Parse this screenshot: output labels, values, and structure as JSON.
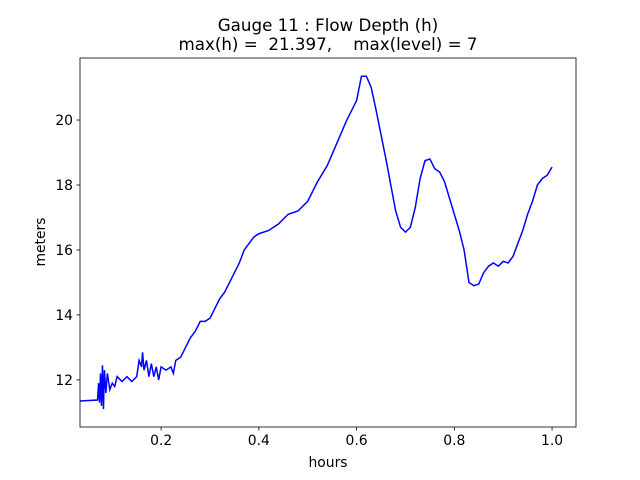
{
  "chart_data": {
    "type": "line",
    "title": [
      "Gauge 11 : Flow Depth (h)",
      "max(h) =  21.397,    max(level) = 7"
    ],
    "x_label": "hours",
    "y_label": "meters",
    "xlim": [
      0.034,
      1.049
    ],
    "ylim": [
      10.55,
      21.91
    ],
    "xticks": [
      0.2,
      0.4,
      0.6,
      0.8,
      {
        "value": 1,
        "label": "1.0"
      }
    ],
    "yticks": [
      12,
      14,
      16,
      18,
      20
    ],
    "series": [
      {
        "name": "h",
        "color": "#0000ff",
        "x": [
          0.034,
          0.07,
          0.072,
          0.074,
          0.076,
          0.078,
          0.08,
          0.082,
          0.084,
          0.087,
          0.09,
          0.095,
          0.1,
          0.105,
          0.11,
          0.12,
          0.13,
          0.14,
          0.15,
          0.155,
          0.16,
          0.162,
          0.165,
          0.17,
          0.175,
          0.18,
          0.185,
          0.19,
          0.195,
          0.2,
          0.21,
          0.22,
          0.225,
          0.23,
          0.24,
          0.25,
          0.26,
          0.27,
          0.28,
          0.29,
          0.3,
          0.31,
          0.32,
          0.33,
          0.34,
          0.35,
          0.36,
          0.37,
          0.38,
          0.39,
          0.4,
          0.42,
          0.44,
          0.46,
          0.48,
          0.5,
          0.52,
          0.54,
          0.56,
          0.58,
          0.6,
          0.61,
          0.62,
          0.63,
          0.64,
          0.66,
          0.68,
          0.69,
          0.7,
          0.71,
          0.72,
          0.73,
          0.74,
          0.75,
          0.76,
          0.77,
          0.78,
          0.79,
          0.8,
          0.81,
          0.82,
          0.83,
          0.84,
          0.85,
          0.86,
          0.87,
          0.88,
          0.89,
          0.9,
          0.91,
          0.92,
          0.93,
          0.94,
          0.95,
          0.96,
          0.97,
          0.98,
          0.99,
          1.0
        ],
        "values": [
          11.35,
          11.38,
          11.9,
          11.3,
          12.2,
          11.2,
          12.45,
          11.1,
          12.3,
          11.6,
          12.2,
          11.7,
          11.9,
          11.8,
          12.1,
          11.95,
          12.1,
          11.95,
          12.1,
          12.6,
          12.4,
          12.85,
          12.3,
          12.6,
          12.1,
          12.5,
          12.1,
          12.4,
          12.0,
          12.4,
          12.3,
          12.4,
          12.2,
          12.6,
          12.7,
          13.0,
          13.3,
          13.5,
          13.8,
          13.8,
          13.9,
          14.2,
          14.5,
          14.7,
          15.0,
          15.3,
          15.6,
          16.0,
          16.2,
          16.4,
          16.5,
          16.6,
          16.8,
          17.1,
          17.2,
          17.5,
          18.1,
          18.6,
          19.3,
          20.0,
          20.6,
          21.35,
          21.35,
          21.0,
          20.3,
          18.8,
          17.2,
          16.7,
          16.55,
          16.7,
          17.3,
          18.2,
          18.75,
          18.8,
          18.5,
          18.4,
          18.1,
          17.6,
          17.1,
          16.6,
          16.0,
          15.0,
          14.9,
          14.95,
          15.3,
          15.5,
          15.6,
          15.5,
          15.65,
          15.6,
          15.8,
          16.2,
          16.6,
          17.1,
          17.5,
          18.0,
          18.2,
          18.3,
          18.55
        ]
      }
    ]
  }
}
